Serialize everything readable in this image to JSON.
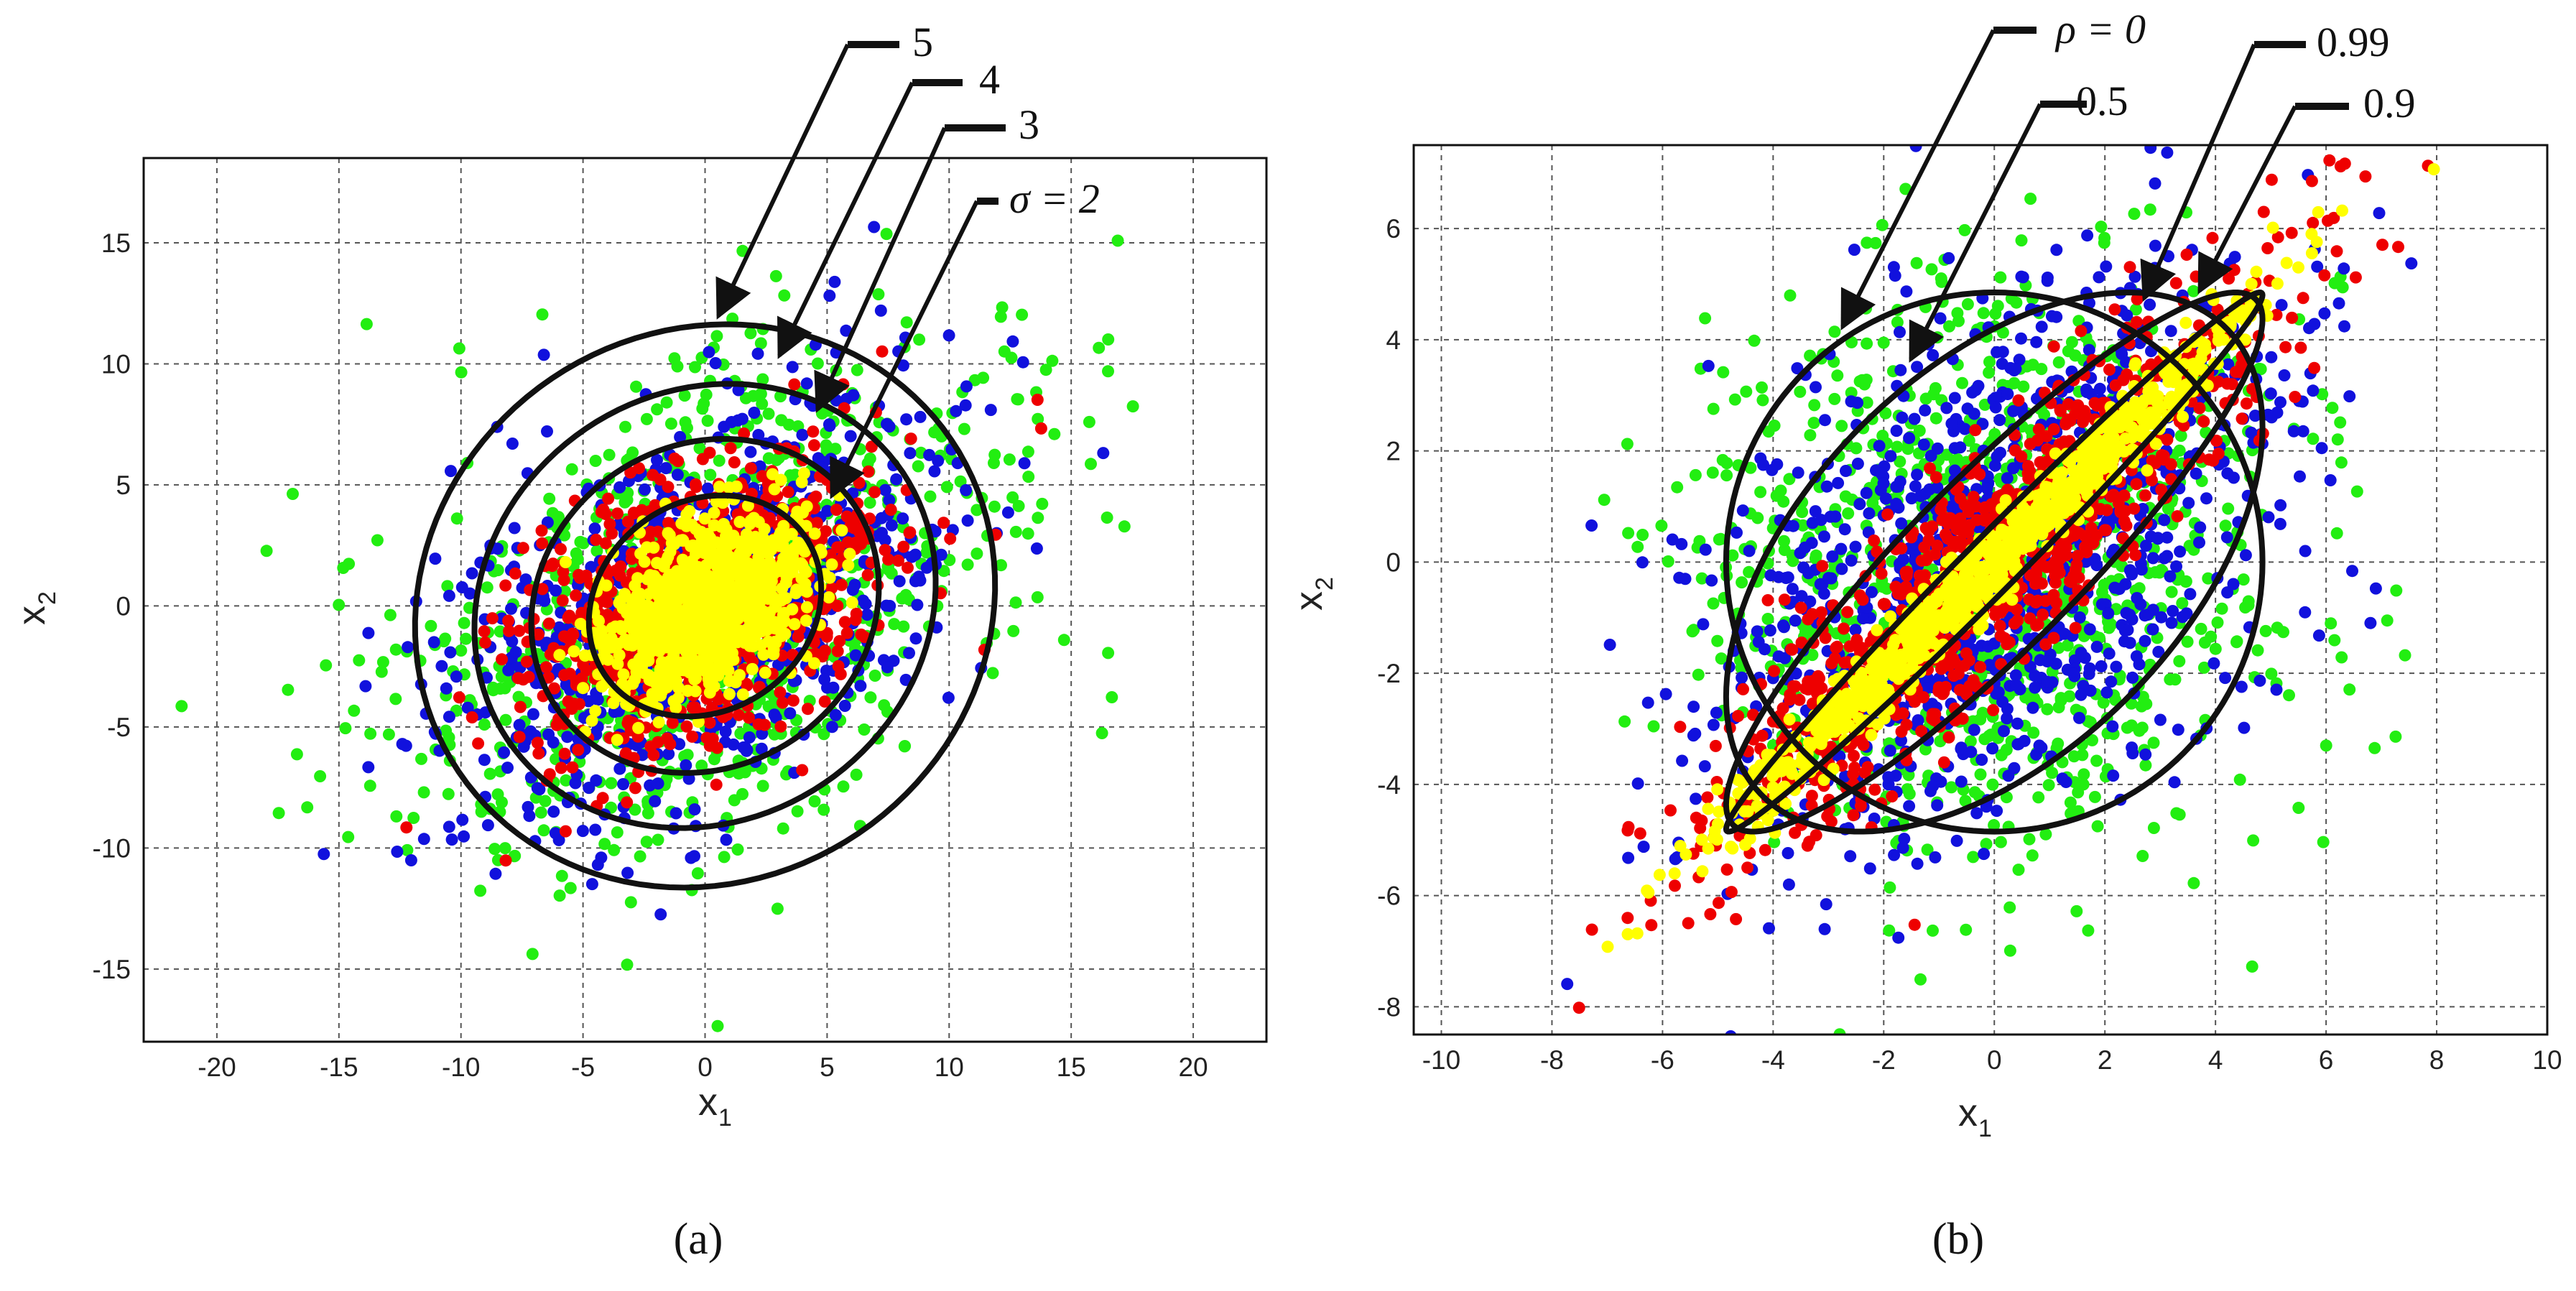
{
  "panels": {
    "a": {
      "caption": "(a)",
      "xlabel": "x",
      "xlabel_sub": "1",
      "ylabel": "x",
      "ylabel_sub": "2"
    },
    "b": {
      "caption": "(b)",
      "xlabel": "x",
      "xlabel_sub": "1",
      "ylabel": "x",
      "ylabel_sub": "2"
    }
  },
  "chart_data": [
    {
      "type": "scatter",
      "panel": "a",
      "title": "",
      "xlim": [
        -23,
        23
      ],
      "ylim": [
        -18,
        18.5
      ],
      "xticks": [
        -20,
        -15,
        -10,
        -5,
        0,
        5,
        10,
        15,
        20
      ],
      "yticks": [
        -15,
        -10,
        -5,
        0,
        5,
        10,
        15
      ],
      "grid": true,
      "colors": {
        "green": "#22ee11",
        "blue": "#1111dd",
        "red": "#ee0000",
        "yellow": "#ffff00"
      },
      "series": [
        {
          "name": "green",
          "std": [
            6.5,
            5.3
          ],
          "rho": 0.45
        },
        {
          "name": "blue",
          "std": [
            5.2,
            4.3
          ],
          "rho": 0.45
        },
        {
          "name": "red",
          "std": [
            3.6,
            3.0
          ],
          "rho": 0.45
        },
        {
          "name": "yellow",
          "std": [
            2.1,
            1.8
          ],
          "rho": 0.45
        }
      ],
      "ellipses": [
        {
          "label": "5",
          "center": [
            0,
            0
          ],
          "rx": 12.2,
          "ry": 11.3,
          "angle_deg": 37
        },
        {
          "label": "4",
          "center": [
            0,
            0
          ],
          "rx": 9.8,
          "ry": 8.8,
          "angle_deg": 37
        },
        {
          "label": "3",
          "center": [
            0,
            0
          ],
          "rx": 7.4,
          "ry": 6.6,
          "angle_deg": 37
        },
        {
          "label": "σ = 2",
          "center": [
            0,
            0
          ],
          "rx": 5.0,
          "ry": 4.3,
          "angle_deg": 37
        }
      ],
      "annotations": [
        {
          "text": "5",
          "target": [
            0,
            11.8
          ]
        },
        {
          "text": "4",
          "target": [
            3,
            10.5
          ]
        },
        {
          "text": "3",
          "target": [
            4,
            9.3
          ]
        },
        {
          "text": "σ = 2",
          "target": [
            5,
            4.2
          ]
        }
      ]
    },
    {
      "type": "scatter",
      "panel": "b",
      "title": "",
      "xlim": [
        -10.5,
        10
      ],
      "ylim": [
        -8.5,
        7.5
      ],
      "xticks": [
        -10,
        -8,
        -6,
        -4,
        -2,
        0,
        2,
        4,
        6,
        8,
        10
      ],
      "yticks": [
        -8,
        -6,
        -4,
        -2,
        0,
        2,
        4,
        6
      ],
      "grid": true,
      "colors": {
        "green": "#22ee11",
        "blue": "#1111dd",
        "red": "#ee0000",
        "yellow": "#ffff00"
      },
      "series": [
        {
          "name": "green",
          "std": [
            2.5,
            2.5
          ],
          "rho": 0
        },
        {
          "name": "blue",
          "std": [
            2.5,
            2.5
          ],
          "rho": 0.5
        },
        {
          "name": "red",
          "std": [
            2.5,
            2.5
          ],
          "rho": 0.9
        },
        {
          "name": "yellow",
          "std": [
            2.5,
            2.5
          ],
          "rho": 0.99
        }
      ],
      "ellipses": [
        {
          "label": "ρ = 0",
          "rho": 0
        },
        {
          "label": "0.5",
          "rho": 0.5
        },
        {
          "label": "0.9",
          "rho": 0.9
        },
        {
          "label": "0.99",
          "rho": 0.99
        }
      ],
      "annotations": [
        {
          "text": "ρ = 0",
          "target": [
            -2.7,
            4.2
          ]
        },
        {
          "text": "0.5",
          "target": [
            -1.3,
            3.7
          ]
        },
        {
          "text": "0.99",
          "target": [
            3.0,
            4.8
          ]
        },
        {
          "text": "0.9",
          "target": [
            4.0,
            5.0
          ]
        }
      ]
    }
  ]
}
